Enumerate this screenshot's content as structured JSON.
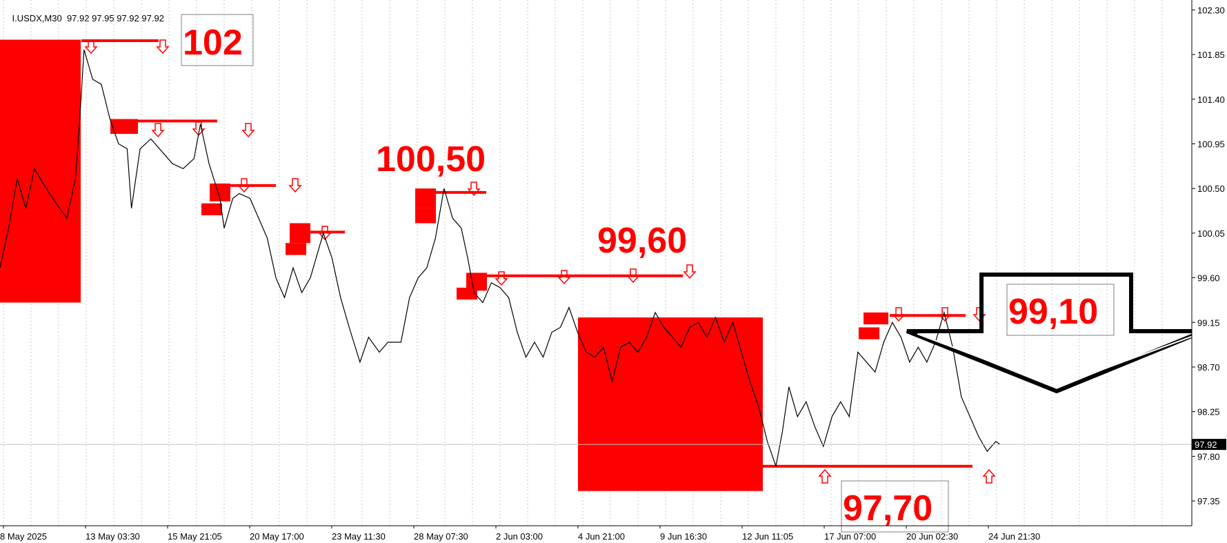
{
  "header": {
    "symbol": "I.USDX,M30",
    "ohlc": "97.92 97.95 97.92 97.92"
  },
  "current_price": "97.92",
  "annotations": {
    "level_102": "102",
    "level_100_50": "100,50",
    "level_99_60": "99,60",
    "level_99_10": "99,10",
    "level_97_70": "97,70"
  },
  "colors": {
    "zone": "#ff0000",
    "price_line": "#000000",
    "grid": "#c8c8c8",
    "background": "#ffffff"
  },
  "chart_data": {
    "type": "line",
    "timeframe": "M30",
    "x_axis_labels": [
      "8 May 2025",
      "13 May 03:30",
      "15 May 21:05",
      "20 May 17:00",
      "23 May 11:30",
      "28 May 07:30",
      "2 Jun 03:00",
      "4 Jun 21:00",
      "9 Jun 16:30",
      "12 Jun 11:05",
      "17 Jun 07:00",
      "20 Jun 02:30",
      "24 Jun 21:30"
    ],
    "y_axis_labels": [
      "102.30",
      "101.85",
      "101.40",
      "100.95",
      "100.50",
      "100.05",
      "99.60",
      "99.15",
      "98.70",
      "98.25",
      "97.80",
      "97.35"
    ],
    "ylim": [
      97.1,
      102.4
    ],
    "grid": "vertical dotted",
    "series": [
      {
        "values": [
          [
            0,
            99.7
          ],
          [
            0.02,
            100.1
          ],
          [
            0.04,
            100.6
          ],
          [
            0.06,
            100.3
          ],
          [
            0.08,
            100.7
          ],
          [
            0.1,
            100.55
          ],
          [
            0.13,
            100.35
          ],
          [
            0.155,
            100.2
          ],
          [
            0.175,
            100.6
          ],
          [
            0.185,
            101.2
          ],
          [
            0.195,
            101.9
          ],
          [
            0.205,
            101.75
          ],
          [
            0.215,
            101.6
          ],
          [
            0.235,
            101.55
          ],
          [
            0.255,
            101.2
          ],
          [
            0.275,
            100.95
          ],
          [
            0.295,
            100.9
          ],
          [
            0.305,
            100.3
          ],
          [
            0.325,
            100.9
          ],
          [
            0.35,
            101.0
          ],
          [
            0.38,
            100.85
          ],
          [
            0.4,
            100.75
          ],
          [
            0.425,
            100.7
          ],
          [
            0.45,
            100.8
          ],
          [
            0.465,
            101.15
          ],
          [
            0.485,
            100.75
          ],
          [
            0.51,
            100.4
          ],
          [
            0.52,
            100.1
          ],
          [
            0.54,
            100.4
          ],
          [
            0.555,
            100.45
          ],
          [
            0.58,
            100.4
          ],
          [
            0.6,
            100.2
          ],
          [
            0.62,
            100.0
          ],
          [
            0.64,
            99.6
          ],
          [
            0.66,
            99.4
          ],
          [
            0.68,
            99.7
          ],
          [
            0.7,
            99.45
          ],
          [
            0.72,
            99.6
          ],
          [
            0.75,
            100.05
          ],
          [
            0.77,
            99.8
          ],
          [
            0.79,
            99.4
          ],
          [
            0.81,
            99.1
          ],
          [
            0.835,
            98.75
          ],
          [
            0.855,
            99.0
          ],
          [
            0.88,
            98.85
          ],
          [
            0.9,
            98.95
          ],
          [
            0.93,
            98.95
          ],
          [
            0.95,
            99.4
          ],
          [
            0.97,
            99.6
          ],
          [
            0.99,
            99.7
          ],
          [
            1.01,
            100.0
          ],
          [
            1.03,
            100.5
          ],
          [
            1.05,
            100.2
          ],
          [
            1.07,
            100.1
          ],
          [
            1.085,
            99.8
          ],
          [
            1.1,
            99.45
          ],
          [
            1.12,
            99.35
          ],
          [
            1.14,
            99.55
          ],
          [
            1.16,
            99.5
          ],
          [
            1.18,
            99.4
          ],
          [
            1.2,
            99.05
          ],
          [
            1.22,
            98.8
          ],
          [
            1.24,
            98.95
          ],
          [
            1.26,
            98.8
          ],
          [
            1.28,
            99.05
          ],
          [
            1.3,
            99.1
          ],
          [
            1.32,
            99.3
          ],
          [
            1.34,
            99.05
          ],
          [
            1.36,
            98.85
          ],
          [
            1.38,
            98.8
          ],
          [
            1.4,
            98.9
          ],
          [
            1.42,
            98.55
          ],
          [
            1.44,
            98.9
          ],
          [
            1.46,
            98.95
          ],
          [
            1.48,
            98.85
          ],
          [
            1.5,
            99.0
          ],
          [
            1.52,
            99.25
          ],
          [
            1.54,
            99.1
          ],
          [
            1.56,
            99.0
          ],
          [
            1.58,
            98.9
          ],
          [
            1.6,
            99.1
          ],
          [
            1.62,
            99.15
          ],
          [
            1.64,
            99.0
          ],
          [
            1.66,
            99.2
          ],
          [
            1.68,
            98.95
          ],
          [
            1.7,
            99.15
          ],
          [
            1.72,
            98.85
          ],
          [
            1.74,
            98.55
          ],
          [
            1.76,
            98.3
          ],
          [
            1.78,
            97.95
          ],
          [
            1.8,
            97.7
          ],
          [
            1.815,
            98.05
          ],
          [
            1.83,
            98.5
          ],
          [
            1.85,
            98.2
          ],
          [
            1.87,
            98.35
          ],
          [
            1.89,
            98.1
          ],
          [
            1.91,
            97.9
          ],
          [
            1.93,
            98.2
          ],
          [
            1.95,
            98.35
          ],
          [
            1.97,
            98.2
          ],
          [
            1.99,
            98.85
          ],
          [
            2.01,
            98.75
          ],
          [
            2.03,
            98.65
          ],
          [
            2.05,
            98.95
          ],
          [
            2.07,
            99.15
          ],
          [
            2.09,
            99.0
          ],
          [
            2.11,
            98.75
          ],
          [
            2.13,
            98.9
          ],
          [
            2.15,
            98.75
          ],
          [
            2.17,
            98.95
          ],
          [
            2.19,
            99.25
          ],
          [
            2.21,
            98.9
          ],
          [
            2.23,
            98.4
          ],
          [
            2.25,
            98.2
          ],
          [
            2.27,
            98.0
          ],
          [
            2.29,
            97.85
          ],
          [
            2.31,
            97.95
          ],
          [
            2.32,
            97.92
          ]
        ]
      }
    ],
    "resistance_levels": [
      102.0,
      101.2,
      100.5,
      100.05,
      99.6,
      99.2
    ],
    "support_levels": [
      97.7
    ]
  }
}
